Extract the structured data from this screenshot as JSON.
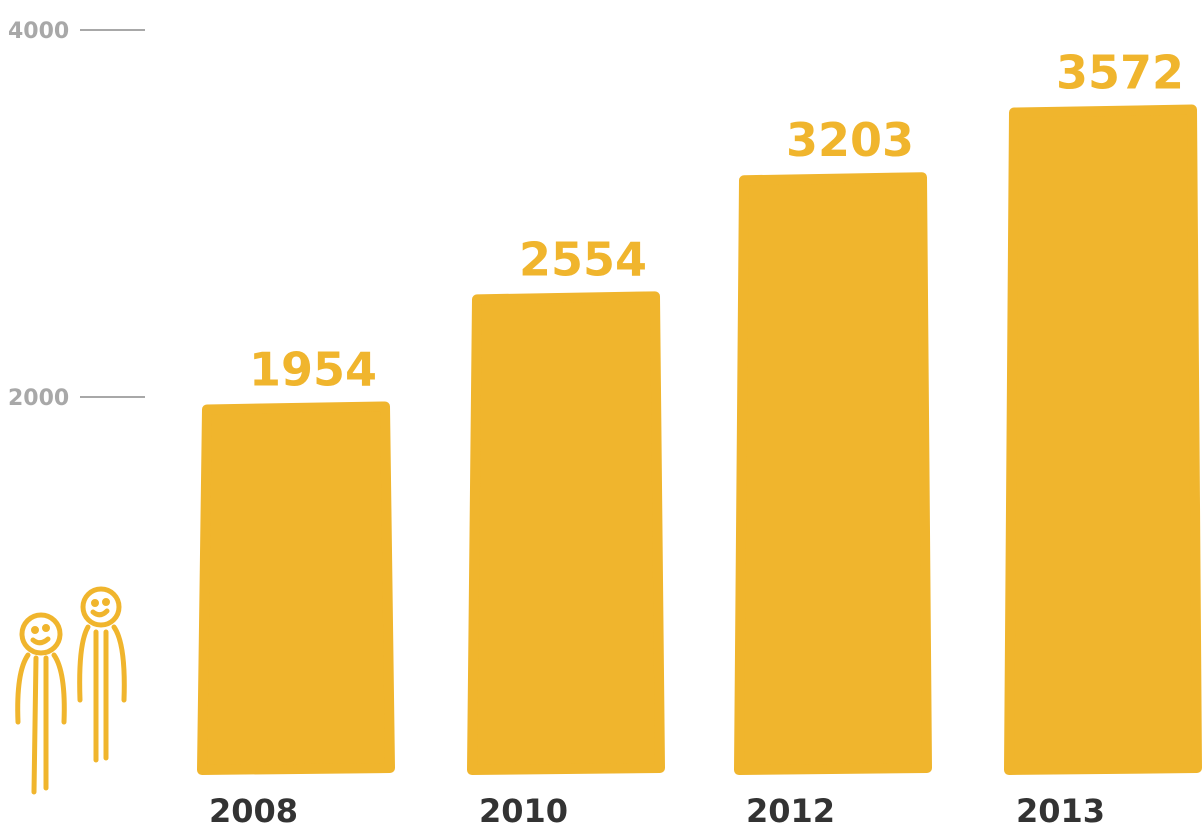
{
  "chart_data": {
    "type": "bar",
    "categories": [
      "2008",
      "2010",
      "2012",
      "2013"
    ],
    "values": [
      1954,
      2554,
      3203,
      3572
    ],
    "value_labels": [
      "1954",
      "2554",
      "3203",
      "3572"
    ],
    "yticks": [
      2000,
      4000
    ],
    "ytick_labels": [
      "2000",
      "4000"
    ],
    "ylim": [
      0,
      4000
    ],
    "title": "",
    "xlabel": "",
    "ylabel": "",
    "grid": false,
    "style": "hand-drawn scribble bars"
  },
  "colors": {
    "bar": "#f0b52d",
    "value_label": "#f0b52d",
    "tick": "#a8a8a8",
    "category": "#333333"
  },
  "decoration": {
    "icon": "two-stick-figures-icon"
  }
}
